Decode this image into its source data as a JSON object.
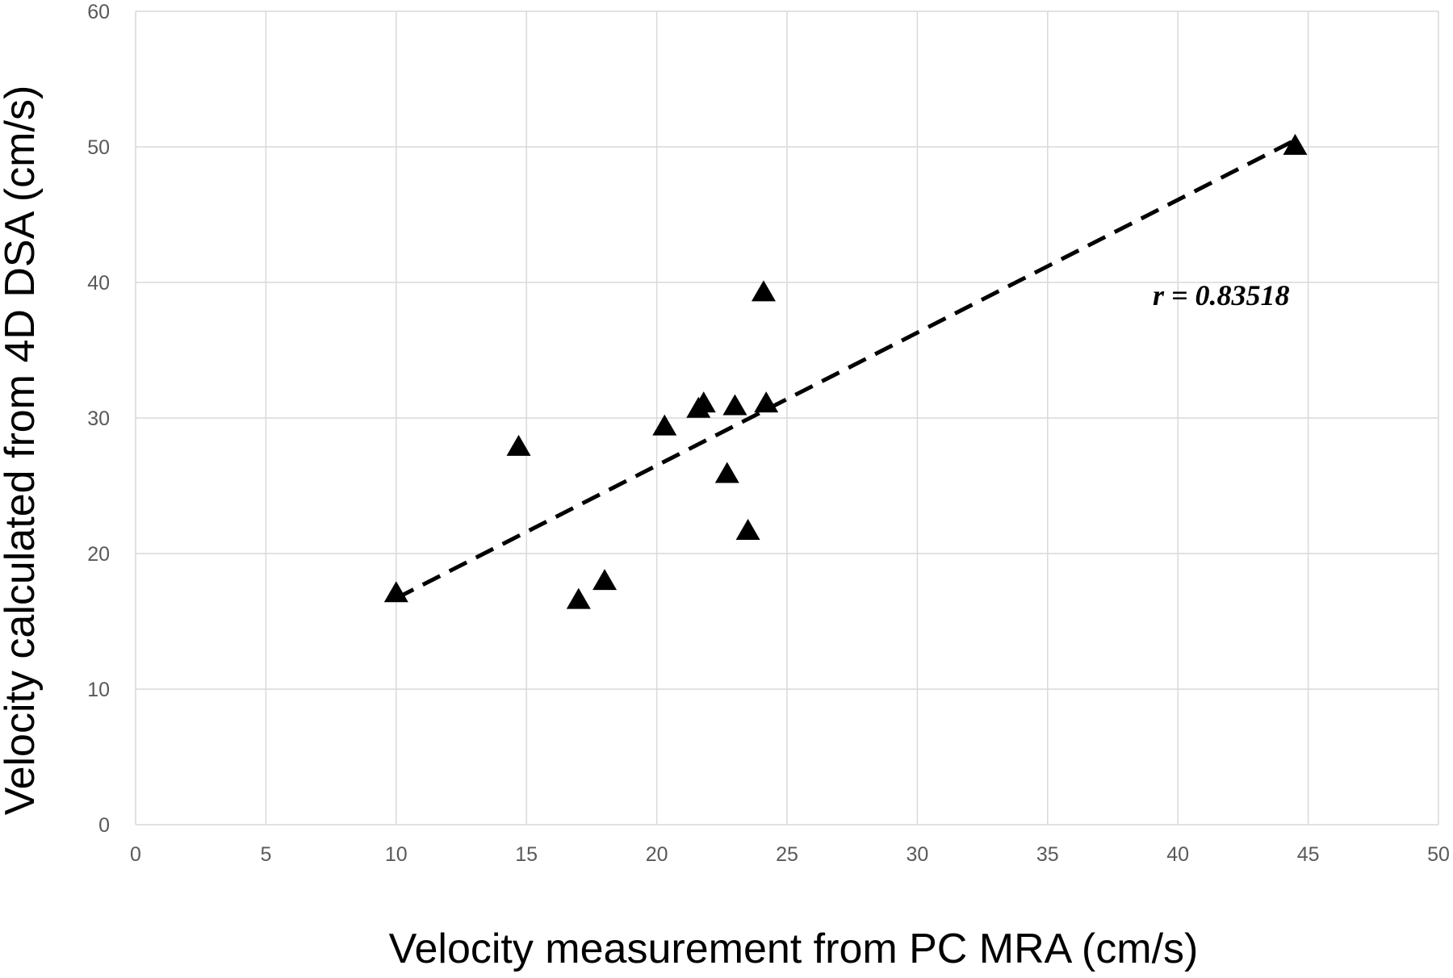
{
  "chart_data": {
    "type": "scatter",
    "xlabel": "Velocity measurement from PC MRA (cm/s)",
    "ylabel": "Velocity calculated from 4D DSA (cm/s)",
    "xlim": [
      0,
      50
    ],
    "ylim": [
      0,
      60
    ],
    "x_ticks": [
      "0",
      "5",
      "10",
      "15",
      "20",
      "25",
      "30",
      "35",
      "40",
      "45",
      "50"
    ],
    "y_ticks": [
      "0",
      "10",
      "20",
      "30",
      "40",
      "50",
      "60"
    ],
    "grid": true,
    "marker": "triangle",
    "series": [
      {
        "points": [
          {
            "x": 10.0,
            "y": 17.0
          },
          {
            "x": 14.7,
            "y": 27.8
          },
          {
            "x": 17.0,
            "y": 16.5
          },
          {
            "x": 18.0,
            "y": 17.9
          },
          {
            "x": 20.3,
            "y": 29.3
          },
          {
            "x": 21.6,
            "y": 30.6
          },
          {
            "x": 21.8,
            "y": 31.0
          },
          {
            "x": 22.7,
            "y": 25.8
          },
          {
            "x": 23.0,
            "y": 30.8
          },
          {
            "x": 23.5,
            "y": 21.6
          },
          {
            "x": 24.1,
            "y": 39.2
          },
          {
            "x": 24.2,
            "y": 31.0
          },
          {
            "x": 44.5,
            "y": 50.0
          }
        ]
      }
    ],
    "trendline": {
      "style": "dashed",
      "x": [
        10.0,
        44.5
      ],
      "y": [
        16.7,
        50.5
      ]
    },
    "annotation": "r = 0.83518",
    "colors": {
      "marker": "#000000",
      "grid": "#d9d9d9",
      "tick_text": "#595959",
      "trendline": "#000000"
    }
  }
}
